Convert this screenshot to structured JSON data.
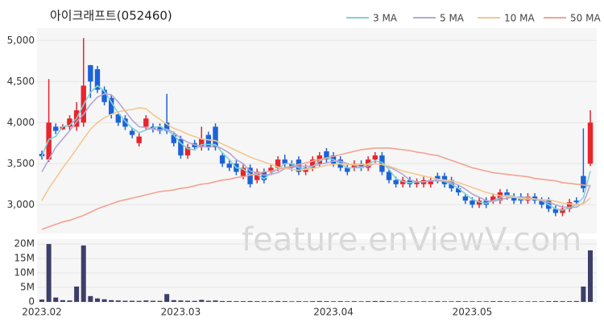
{
  "chart_data": {
    "type": "candlestick",
    "title": "아이크래프트(052460)",
    "watermark": "feature.enViewV.com",
    "categories": [
      "2023.02",
      null,
      null,
      null,
      null,
      null,
      null,
      null,
      null,
      null,
      null,
      null,
      null,
      null,
      null,
      null,
      null,
      null,
      null,
      null,
      "2023.03",
      null,
      null,
      null,
      null,
      null,
      null,
      null,
      null,
      null,
      null,
      null,
      null,
      null,
      null,
      null,
      null,
      null,
      null,
      null,
      null,
      null,
      "2023.04",
      null,
      null,
      null,
      null,
      null,
      null,
      null,
      null,
      null,
      null,
      null,
      null,
      null,
      null,
      null,
      null,
      null,
      null,
      null,
      "2023.05",
      null,
      null,
      null,
      null,
      null,
      null,
      null,
      null,
      null,
      null,
      null,
      null,
      null,
      null,
      null,
      null,
      null
    ],
    "open": [
      3620,
      3550,
      3950,
      3920,
      3950,
      3950,
      4000,
      4700,
      4650,
      4400,
      4300,
      4100,
      4050,
      3900,
      3750,
      3950,
      3950,
      3950,
      4000,
      3850,
      3800,
      3600,
      3750,
      3700,
      3850,
      3950,
      3600,
      3500,
      3500,
      3350,
      3450,
      3300,
      3400,
      3400,
      3450,
      3550,
      3500,
      3550,
      3400,
      3450,
      3500,
      3650,
      3600,
      3550,
      3450,
      3450,
      3500,
      3450,
      3550,
      3600,
      3400,
      3300,
      3250,
      3300,
      3250,
      3250,
      3250,
      3350,
      3350,
      3300,
      3200,
      3100,
      3050,
      3000,
      3050,
      3050,
      3050,
      3150,
      3100,
      3100,
      3050,
      3100,
      3050,
      3050,
      2950,
      2900,
      2950,
      3050,
      3350,
      3500
    ],
    "high": [
      3660,
      4530,
      3990,
      3980,
      4090,
      4250,
      5030,
      4700,
      4690,
      4440,
      4340,
      4140,
      4090,
      3940,
      3870,
      4090,
      3990,
      3990,
      4350,
      3890,
      3840,
      3740,
      3790,
      3950,
      3890,
      3990,
      3640,
      3540,
      3540,
      3490,
      3490,
      3440,
      3440,
      3490,
      3590,
      3610,
      3540,
      3590,
      3490,
      3590,
      3640,
      3690,
      3640,
      3590,
      3490,
      3540,
      3540,
      3590,
      3640,
      3640,
      3440,
      3340,
      3340,
      3340,
      3320,
      3340,
      3340,
      3390,
      3390,
      3340,
      3240,
      3140,
      3090,
      3090,
      3090,
      3140,
      3190,
      3190,
      3140,
      3140,
      3140,
      3140,
      3090,
      3090,
      2990,
      2990,
      3070,
      3090,
      3930,
      4150
    ],
    "low": [
      3550,
      3520,
      3860,
      3910,
      3910,
      3900,
      3950,
      4300,
      4360,
      4210,
      4050,
      3960,
      3910,
      3810,
      3710,
      3910,
      3880,
      3860,
      3860,
      3710,
      3560,
      3560,
      3660,
      3660,
      3660,
      3660,
      3460,
      3410,
      3360,
      3310,
      3210,
      3260,
      3260,
      3360,
      3410,
      3460,
      3410,
      3360,
      3360,
      3410,
      3460,
      3510,
      3460,
      3410,
      3360,
      3410,
      3410,
      3410,
      3510,
      3360,
      3260,
      3210,
      3210,
      3210,
      3210,
      3210,
      3210,
      3260,
      3210,
      3160,
      3110,
      3010,
      2960,
      2960,
      2960,
      3010,
      3010,
      3060,
      3010,
      3010,
      3010,
      3010,
      2960,
      2910,
      2860,
      2860,
      2910,
      2990,
      3150,
      3470
    ],
    "close": [
      3590,
      4000,
      3900,
      3950,
      4050,
      4150,
      4450,
      4500,
      4400,
      4250,
      4100,
      4000,
      3950,
      3850,
      3830,
      4050,
      3920,
      3900,
      3900,
      3750,
      3600,
      3700,
      3700,
      3800,
      3700,
      3700,
      3500,
      3450,
      3400,
      3450,
      3250,
      3400,
      3300,
      3450,
      3550,
      3500,
      3450,
      3400,
      3450,
      3550,
      3600,
      3550,
      3500,
      3450,
      3400,
      3500,
      3450,
      3550,
      3600,
      3400,
      3300,
      3250,
      3300,
      3250,
      3280,
      3300,
      3300,
      3300,
      3250,
      3200,
      3150,
      3050,
      3000,
      3050,
      3000,
      3100,
      3150,
      3100,
      3050,
      3050,
      3100,
      3050,
      3000,
      2950,
      2900,
      2950,
      3030,
      3030,
      3200,
      4000
    ],
    "up_color": "#e8242c",
    "down_color": "#1c62d8",
    "ylim": [
      2650,
      5150
    ],
    "yticks": [
      {
        "value": 3000,
        "label": "3,000"
      },
      {
        "value": 3500,
        "label": "3,500"
      },
      {
        "value": 4000,
        "label": "4,000"
      },
      {
        "value": 4500,
        "label": "4,500"
      },
      {
        "value": 5000,
        "label": "5,000"
      }
    ],
    "grid": true,
    "legend": "top-right",
    "series": [
      {
        "name": "3 MA",
        "color": "#7fd3d6",
        "values": [
          3590,
          3795,
          3830,
          3950,
          3967,
          4050,
          4217,
          4367,
          4450,
          4383,
          4250,
          4117,
          4017,
          3933,
          3877,
          3910,
          3933,
          3957,
          3907,
          3850,
          3750,
          3683,
          3667,
          3733,
          3733,
          3733,
          3633,
          3550,
          3450,
          3433,
          3367,
          3367,
          3317,
          3383,
          3433,
          3500,
          3500,
          3450,
          3433,
          3467,
          3533,
          3567,
          3550,
          3500,
          3450,
          3450,
          3450,
          3500,
          3533,
          3517,
          3433,
          3317,
          3283,
          3267,
          3277,
          3277,
          3293,
          3300,
          3283,
          3250,
          3200,
          3133,
          3067,
          3033,
          3017,
          3050,
          3083,
          3117,
          3100,
          3067,
          3067,
          3067,
          3050,
          3000,
          2950,
          2933,
          2960,
          3003,
          3087,
          3410
        ]
      },
      {
        "name": "5 MA",
        "color": "#b6a6d6",
        "values": [
          3400,
          3550,
          3700,
          3800,
          3900,
          4010,
          4100,
          4220,
          4310,
          4350,
          4340,
          4250,
          4140,
          4030,
          3950,
          3940,
          3920,
          3910,
          3920,
          3880,
          3810,
          3760,
          3730,
          3710,
          3700,
          3720,
          3680,
          3630,
          3550,
          3500,
          3410,
          3390,
          3360,
          3370,
          3390,
          3440,
          3450,
          3470,
          3470,
          3470,
          3490,
          3510,
          3530,
          3530,
          3500,
          3480,
          3460,
          3470,
          3500,
          3490,
          3460,
          3420,
          3370,
          3300,
          3280,
          3280,
          3290,
          3290,
          3290,
          3270,
          3240,
          3190,
          3130,
          3090,
          3050,
          3040,
          3060,
          3080,
          3090,
          3090,
          3090,
          3070,
          3050,
          3030,
          3000,
          2970,
          2970,
          2970,
          3022,
          3242
        ]
      },
      {
        "name": "10 MA",
        "color": "#f3c88f",
        "values": [
          3050,
          3200,
          3320,
          3450,
          3560,
          3680,
          3800,
          3920,
          4000,
          4060,
          4100,
          4130,
          4150,
          4160,
          4180,
          4170,
          4100,
          4040,
          3980,
          3930,
          3900,
          3860,
          3830,
          3800,
          3790,
          3780,
          3740,
          3700,
          3660,
          3620,
          3580,
          3550,
          3520,
          3490,
          3460,
          3440,
          3430,
          3420,
          3430,
          3440,
          3460,
          3480,
          3490,
          3500,
          3490,
          3490,
          3490,
          3490,
          3500,
          3490,
          3470,
          3440,
          3410,
          3390,
          3370,
          3350,
          3330,
          3310,
          3300,
          3290,
          3270,
          3240,
          3210,
          3180,
          3150,
          3130,
          3110,
          3100,
          3090,
          3080,
          3070,
          3070,
          3060,
          3060,
          3040,
          3020,
          3010,
          3000,
          3010,
          3080
        ]
      },
      {
        "name": "50 MA",
        "color": "#f2a391",
        "values": [
          2700,
          2730,
          2760,
          2790,
          2810,
          2840,
          2870,
          2910,
          2950,
          2980,
          3010,
          3040,
          3060,
          3080,
          3100,
          3120,
          3140,
          3160,
          3170,
          3180,
          3200,
          3210,
          3230,
          3250,
          3260,
          3280,
          3300,
          3310,
          3330,
          3340,
          3360,
          3380,
          3400,
          3410,
          3430,
          3450,
          3470,
          3490,
          3510,
          3530,
          3550,
          3570,
          3590,
          3610,
          3630,
          3650,
          3670,
          3680,
          3690,
          3690,
          3690,
          3680,
          3670,
          3660,
          3640,
          3630,
          3610,
          3600,
          3570,
          3540,
          3510,
          3480,
          3450,
          3430,
          3410,
          3390,
          3380,
          3370,
          3360,
          3350,
          3340,
          3320,
          3310,
          3300,
          3290,
          3270,
          3260,
          3250,
          3240,
          3230
        ]
      }
    ],
    "volume": {
      "color": "#3d3f69",
      "ylim": [
        0,
        21700000
      ],
      "yticks": [
        0,
        {
          "value": 5000000,
          "label": "5M"
        },
        {
          "value": 10000000,
          "label": "10M"
        },
        {
          "value": 15000000,
          "label": "15M"
        },
        {
          "value": 20000000,
          "label": "20M"
        }
      ],
      "values": [
        800000,
        20000000,
        1500000,
        600000,
        500000,
        5300000,
        19500000,
        2000000,
        1200000,
        900000,
        600000,
        500000,
        400000,
        400000,
        350000,
        500000,
        400000,
        350000,
        2700000,
        600000,
        500000,
        400000,
        350000,
        700000,
        400000,
        500000,
        300000,
        300000,
        250000,
        250000,
        300000,
        250000,
        250000,
        250000,
        300000,
        250000,
        200000,
        250000,
        200000,
        250000,
        300000,
        250000,
        200000,
        250000,
        200000,
        250000,
        200000,
        250000,
        300000,
        300000,
        250000,
        200000,
        200000,
        200000,
        200000,
        200000,
        200000,
        250000,
        200000,
        200000,
        250000,
        200000,
        200000,
        200000,
        200000,
        250000,
        250000,
        200000,
        200000,
        200000,
        200000,
        200000,
        200000,
        250000,
        300000,
        250000,
        250000,
        300000,
        5300000,
        17800000
      ]
    }
  }
}
